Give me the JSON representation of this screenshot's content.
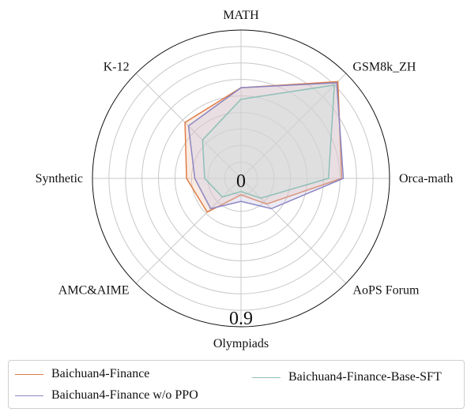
{
  "chart_data": {
    "type": "radar",
    "axes": [
      "MATH",
      "GSM8k_ZH",
      "Orca-math",
      "AoPS Forum",
      "Olympiads",
      "AMC&AIME",
      "Synthetic",
      "K-12"
    ],
    "rlim": [
      0,
      0.9
    ],
    "tick_labels": [
      "0",
      "0.9"
    ],
    "rings": 9,
    "grid": true,
    "legend_position": "bottom",
    "series": [
      {
        "name": "Baichuan4-Finance",
        "color": "#e07b46",
        "fill": "#f2c7ad",
        "values": [
          0.55,
          0.83,
          0.61,
          0.22,
          0.1,
          0.29,
          0.33,
          0.48
        ]
      },
      {
        "name": "Baichuan4-Finance w/o PPO",
        "color": "#8b86c2",
        "fill": "#c9c6e3",
        "values": [
          0.55,
          0.82,
          0.62,
          0.26,
          0.14,
          0.26,
          0.28,
          0.45
        ]
      },
      {
        "name": "Baichuan4-Finance-Base-SFT",
        "color": "#8ec0b6",
        "fill": "#cfe3de",
        "values": [
          0.48,
          0.8,
          0.53,
          0.17,
          0.08,
          0.16,
          0.22,
          0.33
        ]
      }
    ]
  },
  "legend": {
    "entries": [
      "Baichuan4-Finance",
      "Baichuan4-Finance w/o PPO",
      "Baichuan4-Finance-Base-SFT"
    ]
  }
}
